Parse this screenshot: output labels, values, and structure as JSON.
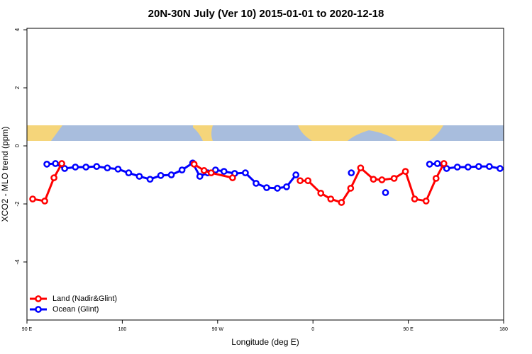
{
  "chart_data": {
    "type": "line",
    "title": "20N-30N July (Ver 10)   2015-01-01 to 2020-12-18",
    "x_label": "Longitude (deg E)",
    "y_label": "XCO2 - MLO trend (ppm)",
    "xlim": [
      90,
      540
    ],
    "xticks": [
      {
        "value": 90,
        "label": "90 E"
      },
      180,
      {
        "value": 270,
        "label": "90 W"
      },
      {
        "value": 360,
        "label": "0"
      },
      {
        "value": 450,
        "label": "90 E"
      },
      {
        "value": 540,
        "label": "180"
      }
    ],
    "ylim": [
      -6,
      4.05
    ],
    "yticks": [
      -4,
      -2,
      0,
      2,
      4
    ],
    "legend": "bottom-left",
    "series": [
      {
        "name": "Land (Nadir&Glint)",
        "color": "#ff0000",
        "x": [
          95.4,
          106.8,
          115.5,
          122.9,
          200,
          247.8,
          257.2,
          263.9,
          284.1,
          310,
          347.9,
          355.3,
          367.4,
          376.8,
          386.9,
          395.6,
          405.0,
          417.1,
          425.1,
          436.6,
          447.3,
          456.0,
          466.8,
          476.2,
          483.6
        ],
        "values": [
          -1.83,
          -1.9,
          -1.1,
          -0.61,
          null,
          -0.63,
          -0.85,
          -0.93,
          -1.1,
          null,
          -1.2,
          -1.2,
          -1.63,
          -1.83,
          -1.95,
          -1.46,
          -0.76,
          -1.15,
          -1.17,
          -1.12,
          -0.88,
          -1.83,
          -1.9,
          -1.12,
          -0.61
        ]
      },
      {
        "name": "Ocean (Glint)",
        "color": "#0000ff",
        "x": [
          108.8,
          116.9,
          125.6,
          135.7,
          145.7,
          155.8,
          165.9,
          176.0,
          186.0,
          196.1,
          206.2,
          216.3,
          226.3,
          236.4,
          246.5,
          253.2,
          260.6,
          268.0,
          276.0,
          286.1,
          296.2,
          306.3,
          316.3,
          326.4,
          335.1,
          343.9,
          370,
          396.2,
          412,
          428.5,
          450,
          470.1,
          477.5,
          486.2,
          496.3,
          506.4,
          516.5,
          526.5,
          536.6
        ],
        "values": [
          -0.63,
          -0.61,
          -0.78,
          -0.73,
          -0.73,
          -0.71,
          -0.76,
          -0.8,
          -0.93,
          -1.05,
          -1.15,
          -1.02,
          -1.0,
          -0.83,
          -0.59,
          -1.05,
          -0.93,
          -0.83,
          -0.88,
          -0.95,
          -0.93,
          -1.29,
          -1.44,
          -1.46,
          -1.41,
          -1.0,
          null,
          -0.93,
          null,
          -1.61,
          null,
          -0.63,
          -0.61,
          -0.78,
          -0.73,
          -0.73,
          -0.71,
          -0.71,
          -0.78
        ]
      }
    ]
  }
}
